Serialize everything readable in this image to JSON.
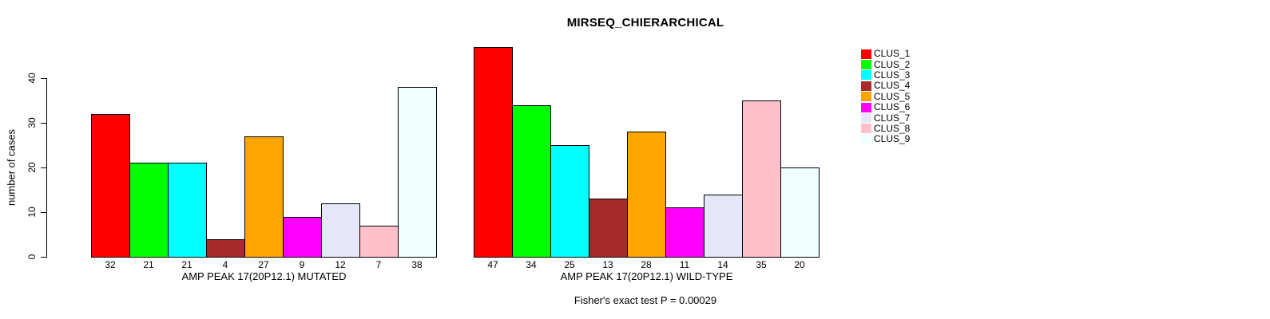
{
  "figure": {
    "title": "MIRSEQ_CHIERARCHICAL",
    "ylabel": "number of cases",
    "annotation": "Fisher's exact test P = 0.00029"
  },
  "chart_data": {
    "type": "bar",
    "title": "MIRSEQ_CHIERARCHICAL",
    "ylabel": "number of cases",
    "ylim": [
      0,
      47
    ],
    "yticks": [
      0,
      10,
      20,
      30,
      40
    ],
    "grid": false,
    "legend_position": "right",
    "clusters": [
      {
        "name": "CLUS_1",
        "color": "#FF0000"
      },
      {
        "name": "CLUS_2",
        "color": "#00FF00"
      },
      {
        "name": "CLUS_3",
        "color": "#00FFFF"
      },
      {
        "name": "CLUS_4",
        "color": "#A52A2A"
      },
      {
        "name": "CLUS_5",
        "color": "#FFA500"
      },
      {
        "name": "CLUS_6",
        "color": "#FF00FF"
      },
      {
        "name": "CLUS_7",
        "color": "#E6E6FA"
      },
      {
        "name": "CLUS_8",
        "color": "#FFC0CB"
      },
      {
        "name": "CLUS_9",
        "color": "#F0FFFF"
      }
    ],
    "panels": [
      {
        "xlabel": "AMP PEAK 17(20P12.1) MUTATED",
        "values": [
          32,
          21,
          21,
          4,
          27,
          9,
          12,
          7,
          38
        ]
      },
      {
        "xlabel": "AMP PEAK 17(20P12.1) WILD-TYPE",
        "values": [
          47,
          34,
          25,
          13,
          28,
          11,
          14,
          35,
          20
        ]
      }
    ],
    "annotation": "Fisher's exact test P = 0.00029",
    "bar_border_color": "#000000"
  }
}
